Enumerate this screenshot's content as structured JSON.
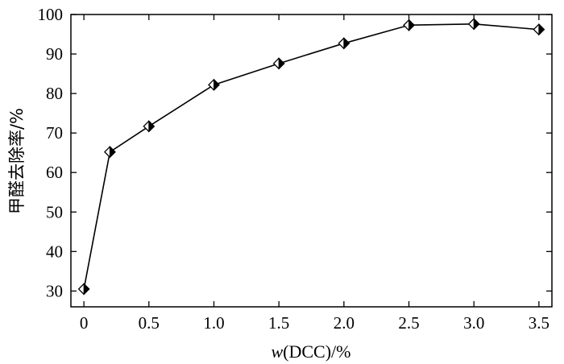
{
  "chart_data": {
    "type": "line",
    "title": "",
    "xlabel_prefix": "w",
    "xlabel_suffix": "(DCC)/%",
    "ylabel": "甲醛去除率/%",
    "xlim": [
      -0.1,
      3.6
    ],
    "ylim": [
      26,
      100
    ],
    "x_ticks": [
      0,
      0.5,
      1.0,
      1.5,
      2.0,
      2.5,
      3.0,
      3.5
    ],
    "x_tick_labels": [
      "0",
      "0.5",
      "1.0",
      "1.5",
      "2.0",
      "2.5",
      "3.0",
      "3.5"
    ],
    "y_ticks": [
      30,
      40,
      50,
      60,
      70,
      80,
      90,
      100
    ],
    "y_tick_labels": [
      "30",
      "40",
      "50",
      "60",
      "70",
      "80",
      "90",
      "100"
    ],
    "grid": false,
    "marker": "half-filled-diamond",
    "series": [
      {
        "x": [
          0,
          0.2,
          0.5,
          1.0,
          1.5,
          2.0,
          2.5,
          3.0,
          3.5
        ],
        "y": [
          30.5,
          65.2,
          71.7,
          82.2,
          87.6,
          92.7,
          97.3,
          97.6,
          96.2
        ]
      }
    ]
  }
}
